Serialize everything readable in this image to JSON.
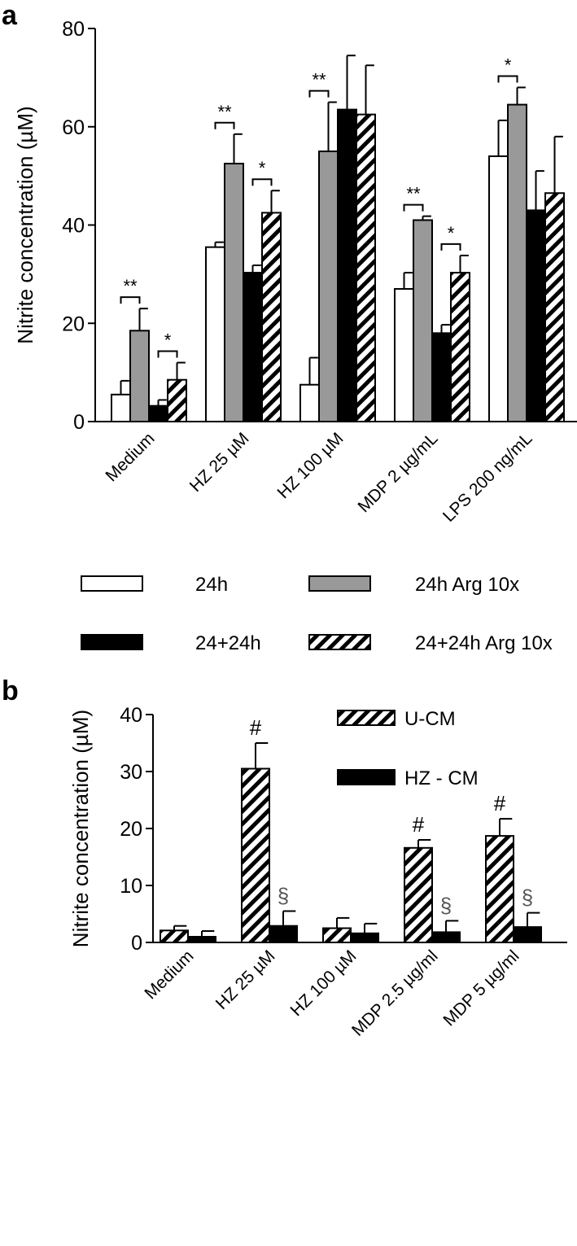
{
  "chart_data": [
    {
      "panel": "a",
      "type": "bar",
      "ylabel": "Nitrite concentration (µM)",
      "ylim": [
        0,
        80
      ],
      "yticks": [
        0,
        20,
        40,
        60,
        80
      ],
      "categories": [
        "Medium",
        "HZ 25 µM",
        "HZ 100 µM",
        "MDP 2 µg/mL",
        "LPS 200 ng/mL"
      ],
      "legend_position": "bottom",
      "series": [
        {
          "name": "24h",
          "fill": "white",
          "values": [
            5.5,
            35.5,
            7.5,
            27,
            54
          ],
          "errors": [
            2.8,
            1.0,
            5.5,
            3.3,
            7.3
          ]
        },
        {
          "name": "24h Arg 10x",
          "fill": "grey",
          "color": "#999999",
          "values": [
            18.5,
            52.5,
            55,
            41,
            64.5
          ],
          "errors": [
            4.5,
            6.0,
            10,
            0.8,
            3.5
          ]
        },
        {
          "name": "24+24h",
          "fill": "black",
          "color": "#000000",
          "values": [
            3.2,
            30.3,
            63.5,
            18,
            43
          ],
          "errors": [
            1.2,
            1.5,
            11,
            1.7,
            8
          ]
        },
        {
          "name": "24+24h Arg 10x",
          "fill": "hatch",
          "values": [
            8.5,
            42.5,
            62.5,
            30.3,
            46.5
          ],
          "errors": [
            3.5,
            4.5,
            10,
            3.5,
            11.5
          ]
        }
      ],
      "significance": [
        {
          "category": 0,
          "from": 0,
          "to": 1,
          "label": "**"
        },
        {
          "category": 0,
          "from": 2,
          "to": 3,
          "label": "*"
        },
        {
          "category": 1,
          "from": 0,
          "to": 1,
          "label": "**"
        },
        {
          "category": 1,
          "from": 2,
          "to": 3,
          "label": "*"
        },
        {
          "category": 2,
          "from": 0,
          "to": 1,
          "label": "**"
        },
        {
          "category": 3,
          "from": 0,
          "to": 1,
          "label": "**"
        },
        {
          "category": 3,
          "from": 2,
          "to": 3,
          "label": "*"
        },
        {
          "category": 4,
          "from": 0,
          "to": 1,
          "label": "*"
        }
      ]
    },
    {
      "panel": "b",
      "type": "bar",
      "ylabel": "Nitrite concentration (µM)",
      "ylim": [
        0,
        40
      ],
      "yticks": [
        0,
        10,
        20,
        30,
        40
      ],
      "categories": [
        "Medium",
        "HZ 25 µM",
        "HZ 100 µM",
        "MDP 2.5 µg/ml",
        "MDP 5 µg/ml"
      ],
      "legend_position": "top-right",
      "series": [
        {
          "name": "U-CM",
          "fill": "hatch",
          "values": [
            2.1,
            30.5,
            2.5,
            16.6,
            18.7
          ],
          "errors": [
            0.8,
            4.5,
            1.8,
            1.4,
            3.0
          ],
          "markers": [
            "",
            "#",
            "",
            "#",
            "#"
          ]
        },
        {
          "name": "HZ - CM",
          "fill": "black",
          "color": "#000000",
          "values": [
            1.0,
            2.9,
            1.6,
            1.8,
            2.7
          ],
          "errors": [
            1.0,
            2.6,
            1.7,
            2.0,
            2.5
          ],
          "markers": [
            "",
            "§",
            "",
            "§",
            "§"
          ]
        }
      ]
    }
  ]
}
